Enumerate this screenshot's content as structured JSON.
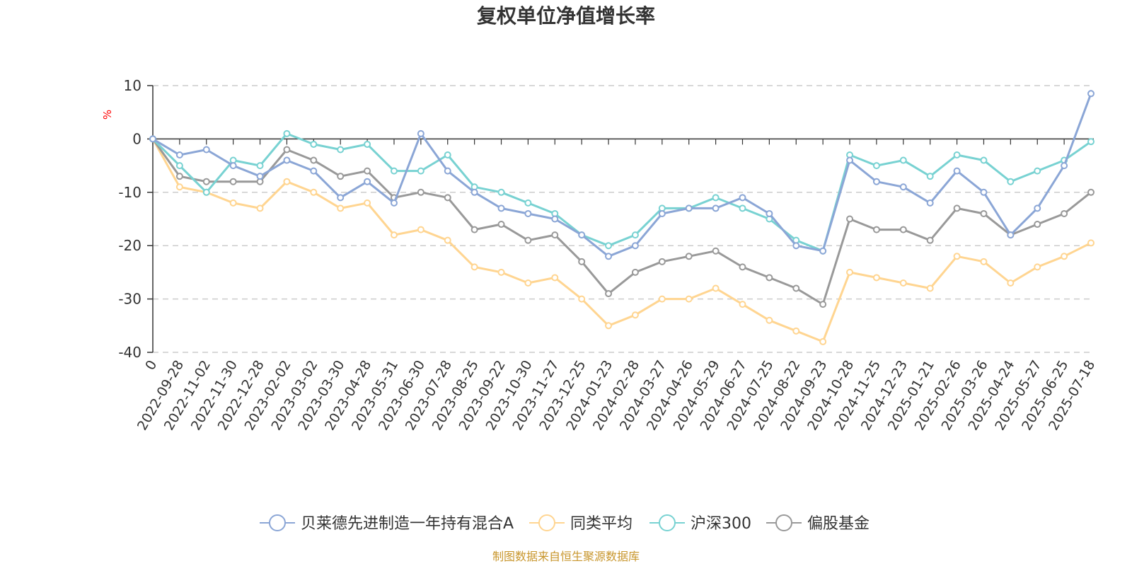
{
  "chart_data": {
    "type": "line",
    "title": "复权单位净值增长率",
    "ylabel": "%",
    "ylim": [
      -40,
      10
    ],
    "yticks": [
      10,
      0,
      -10,
      -20,
      -30,
      -40
    ],
    "grid": true,
    "legend_position": "bottom",
    "categories": [
      "0",
      "2022-09-28",
      "2022-11-02",
      "2022-11-30",
      "2022-12-28",
      "2023-02-02",
      "2023-03-02",
      "2023-03-30",
      "2023-04-28",
      "2023-05-31",
      "2023-06-30",
      "2023-07-28",
      "2023-08-25",
      "2023-09-22",
      "2023-10-30",
      "2023-11-27",
      "2023-12-25",
      "2024-01-23",
      "2024-02-28",
      "2024-03-27",
      "2024-04-26",
      "2024-05-29",
      "2024-06-27",
      "2024-07-25",
      "2024-08-22",
      "2024-09-23",
      "2024-10-28",
      "2024-11-25",
      "2024-12-23",
      "2025-01-21",
      "2025-02-26",
      "2025-03-26",
      "2025-04-24",
      "2025-05-27",
      "2025-06-25",
      "2025-07-18"
    ],
    "series": [
      {
        "name": "贝莱德先进制造一年持有混合A",
        "color": "#8ba6d6",
        "values": [
          0,
          -3,
          -2,
          -5,
          -7,
          -4,
          -6,
          -11,
          -8,
          -12,
          1,
          -6,
          -10,
          -13,
          -14,
          -15,
          -18,
          -22,
          -20,
          -14,
          -13,
          -13,
          -11,
          -14,
          -20,
          -21,
          -4,
          -8,
          -9,
          -12,
          -6,
          -10,
          -18,
          -13,
          -5,
          8.5
        ]
      },
      {
        "name": "同类平均",
        "color": "#ffd591",
        "values": [
          0,
          -9,
          -10,
          -12,
          -13,
          -8,
          -10,
          -13,
          -12,
          -18,
          -17,
          -19,
          -24,
          -25,
          -27,
          -26,
          -30,
          -35,
          -33,
          -30,
          -30,
          -28,
          -31,
          -34,
          -36,
          -38,
          -25,
          -26,
          -27,
          -28,
          -22,
          -23,
          -27,
          -24,
          -22,
          -19.5
        ]
      },
      {
        "name": "沪深300",
        "color": "#78d2d2",
        "values": [
          0,
          -5,
          -10,
          -4,
          -5,
          1,
          -1,
          -2,
          -1,
          -6,
          -6,
          -3,
          -9,
          -10,
          -12,
          -14,
          -18,
          -20,
          -18,
          -13,
          -13,
          -11,
          -13,
          -15,
          -19,
          -21,
          -3,
          -5,
          -4,
          -7,
          -3,
          -4,
          -8,
          -6,
          -4,
          -0.5
        ]
      },
      {
        "name": "偏股基金",
        "color": "#999999",
        "values": [
          0,
          -7,
          -8,
          -8,
          -8,
          -2,
          -4,
          -7,
          -6,
          -11,
          -10,
          -11,
          -17,
          -16,
          -19,
          -18,
          -23,
          -29,
          -25,
          -23,
          -22,
          -21,
          -24,
          -26,
          -28,
          -31,
          -15,
          -17,
          -17,
          -19,
          -13,
          -14,
          -18,
          -16,
          -14,
          -10
        ]
      }
    ]
  },
  "legend": {
    "items": [
      {
        "label": "贝莱德先进制造一年持有混合A",
        "color": "#8ba6d6"
      },
      {
        "label": "同类平均",
        "color": "#ffd591"
      },
      {
        "label": "沪深300",
        "color": "#78d2d2"
      },
      {
        "label": "偏股基金",
        "color": "#999999"
      }
    ]
  },
  "source_text": "制图数据来自恒生聚源数据库"
}
